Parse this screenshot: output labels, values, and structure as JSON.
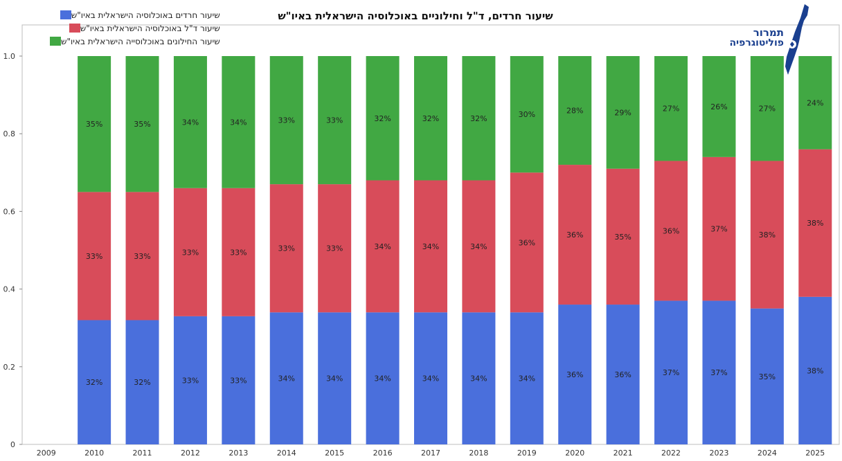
{
  "title": "שיעור חרדים, ד\"ל וחילוניים באוכלוסיה הישראלית באיו\"ש",
  "logo": {
    "line1": "תמרור",
    "line2": "פוליטוגרפיה"
  },
  "chart_data": {
    "type": "bar",
    "stacked": true,
    "categories": [
      "2009",
      "2010",
      "2011",
      "2012",
      "2013",
      "2014",
      "2015",
      "2016",
      "2017",
      "2018",
      "2019",
      "2020",
      "2021",
      "2022",
      "2023",
      "2024",
      "2025"
    ],
    "ylim": [
      0,
      1
    ],
    "yticks": [
      "0",
      "0.2",
      "0.4",
      "0.6",
      "0.8",
      "1.0"
    ],
    "ytick_values": [
      0,
      0.2,
      0.4,
      0.6,
      0.8,
      1.0
    ],
    "legend_position": "top-left",
    "series": [
      {
        "name": "שיעור חרדים באוכלוסיה הישראלית באיו\"ש",
        "color": "#4a6fdc",
        "values": [
          null,
          0.32,
          0.32,
          0.33,
          0.33,
          0.34,
          0.34,
          0.34,
          0.34,
          0.34,
          0.34,
          0.36,
          0.36,
          0.37,
          0.37,
          0.35,
          0.38
        ],
        "labels": [
          "",
          "32%",
          "32%",
          "33%",
          "33%",
          "34%",
          "34%",
          "34%",
          "34%",
          "34%",
          "34%",
          "36%",
          "36%",
          "37%",
          "37%",
          "35%",
          "38%"
        ]
      },
      {
        "name": "שיעור ד\"ל באוכלוסיה הישראלית באיו\"ש",
        "color": "#d84c5a",
        "values": [
          null,
          0.33,
          0.33,
          0.33,
          0.33,
          0.33,
          0.33,
          0.34,
          0.34,
          0.34,
          0.36,
          0.36,
          0.35,
          0.36,
          0.37,
          0.38,
          0.38
        ],
        "labels": [
          "",
          "33%",
          "33%",
          "33%",
          "33%",
          "33%",
          "33%",
          "34%",
          "34%",
          "34%",
          "36%",
          "36%",
          "35%",
          "36%",
          "37%",
          "38%",
          "38%"
        ]
      },
      {
        "name": "שיעור החילונים באוכלוסייה הישראלית באיו\"ש",
        "color": "#41a843",
        "values": [
          null,
          0.35,
          0.35,
          0.34,
          0.34,
          0.33,
          0.33,
          0.32,
          0.32,
          0.32,
          0.3,
          0.28,
          0.29,
          0.27,
          0.26,
          0.27,
          0.24
        ],
        "labels": [
          "",
          "35%",
          "35%",
          "34%",
          "34%",
          "33%",
          "33%",
          "32%",
          "32%",
          "32%",
          "30%",
          "28%",
          "29%",
          "27%",
          "26%",
          "27%",
          "24%"
        ]
      }
    ]
  }
}
